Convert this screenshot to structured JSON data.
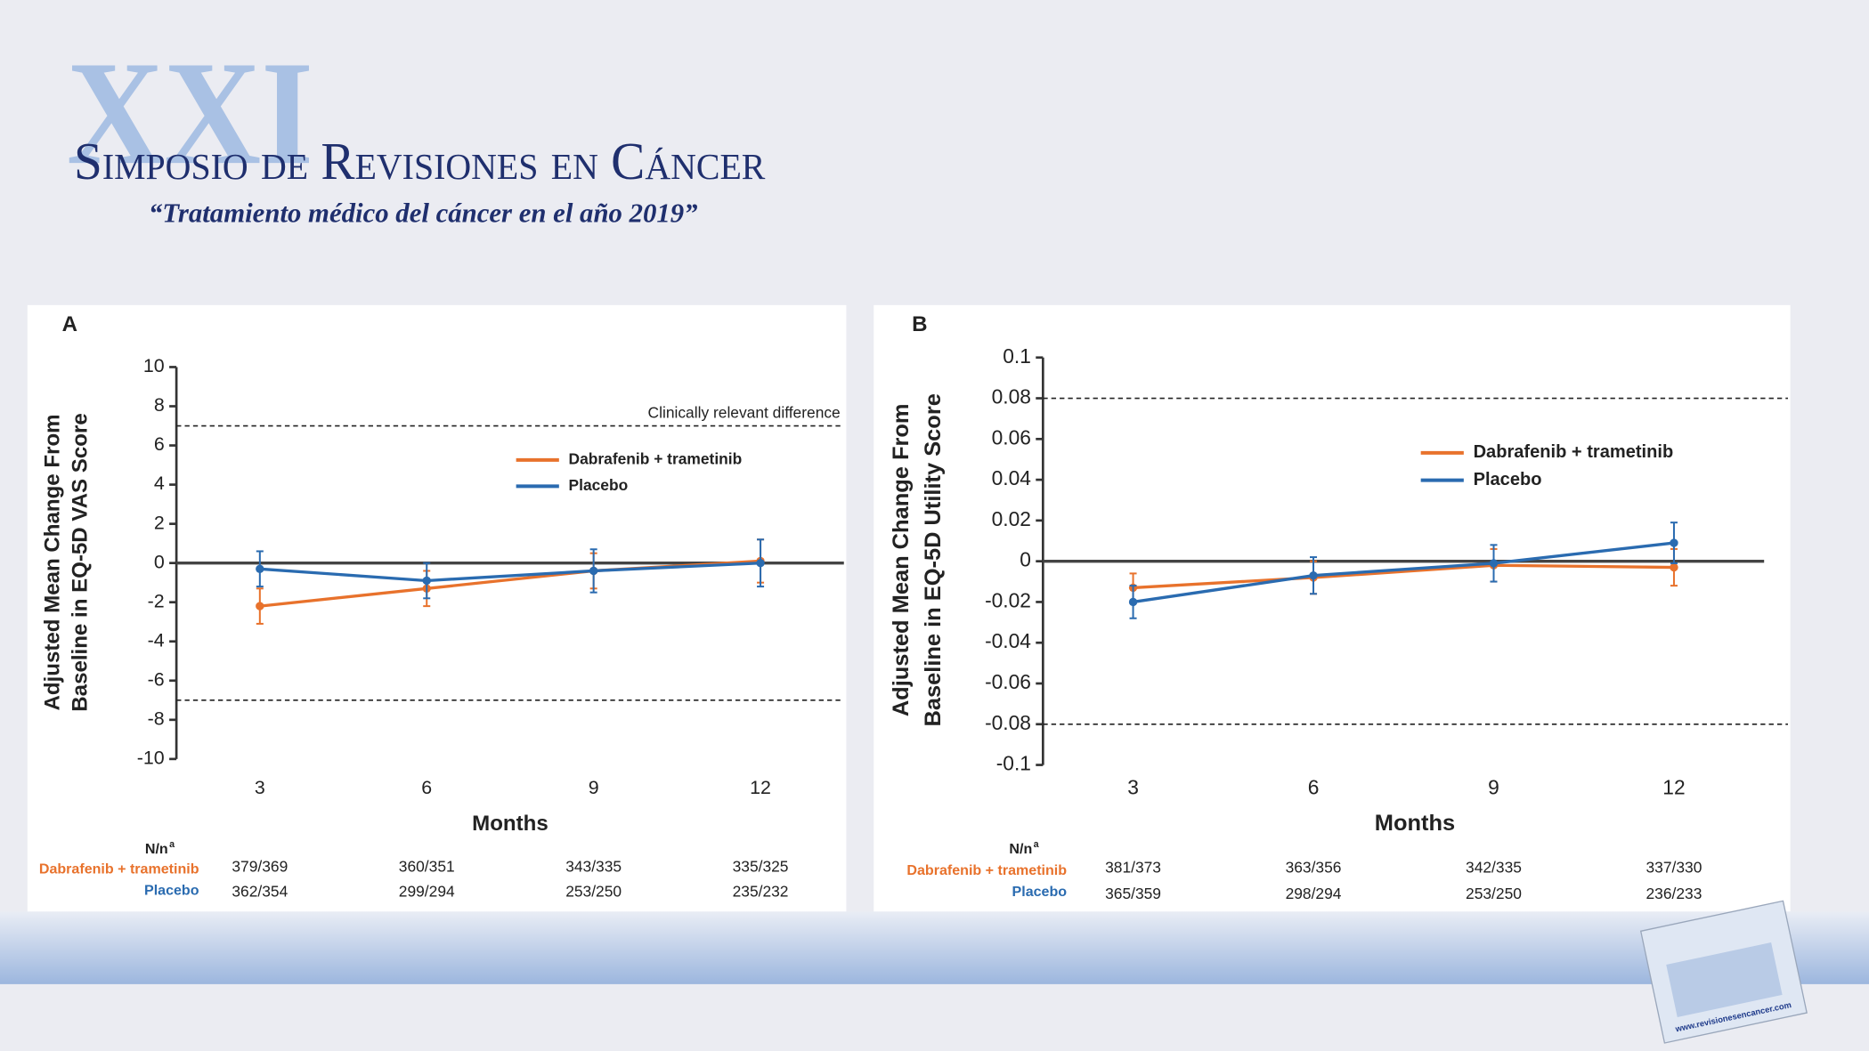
{
  "header": {
    "numeral": "XXI",
    "title": "Simposio de Revisiones en Cáncer",
    "subtitle": "“Tratamiento médico del cáncer en el año 2019”"
  },
  "footer_url": "www.revisionesencancer.com",
  "chart_data": [
    {
      "type": "line",
      "panel": "A",
      "y_label": [
        "Adjusted Mean Change From",
        "Baseline in EQ-5D VAS Score"
      ],
      "x_label": "Months",
      "x": [
        3,
        6,
        9,
        12
      ],
      "xlim": [
        1.5,
        13.5
      ],
      "xticks": [
        3,
        6,
        9,
        12
      ],
      "ylim": [
        -10,
        10
      ],
      "yticks": [
        -10,
        -8,
        -6,
        -4,
        -2,
        0,
        2,
        4,
        6,
        8,
        10
      ],
      "legend": "upper right",
      "ref_lines": [
        7,
        -7
      ],
      "annotation": "Clinically relevant difference",
      "series": [
        {
          "name": "Dabrafenib + trametinib",
          "color": "#e8722c",
          "values": [
            -2.2,
            -1.3,
            -0.4,
            0.1
          ],
          "errors": [
            0.9,
            0.9,
            0.9,
            1.1
          ]
        },
        {
          "name": "Placebo",
          "color": "#2a6bb0",
          "values": [
            -0.3,
            -0.9,
            -0.4,
            0.0
          ],
          "errors": [
            0.9,
            0.9,
            1.1,
            1.2
          ]
        }
      ],
      "n_table": {
        "header": "N/n",
        "header_note": "a",
        "rows": [
          {
            "name": "Dabrafenib + trametinib",
            "values": [
              "379/369",
              "360/351",
              "343/335",
              "335/325"
            ]
          },
          {
            "name": "Placebo",
            "values": [
              "362/354",
              "299/294",
              "253/250",
              "235/232"
            ]
          }
        ]
      }
    },
    {
      "type": "line",
      "panel": "B",
      "y_label": [
        "Adjusted Mean Change From",
        "Baseline in EQ-5D Utility Score"
      ],
      "x_label": "Months",
      "x": [
        3,
        6,
        9,
        12
      ],
      "xlim": [
        1.5,
        13.5
      ],
      "xticks": [
        3,
        6,
        9,
        12
      ],
      "ylim": [
        -0.1,
        0.1
      ],
      "yticks": [
        -0.1,
        -0.08,
        -0.06,
        -0.04,
        -0.02,
        0,
        0.02,
        0.04,
        0.06,
        0.08,
        0.1
      ],
      "legend": "upper right",
      "ref_lines": [
        0.08,
        -0.08
      ],
      "series": [
        {
          "name": "Dabrafenib + trametinib",
          "color": "#e8722c",
          "values": [
            -0.013,
            -0.008,
            -0.002,
            -0.003
          ],
          "errors": [
            0.007,
            0.008,
            0.008,
            0.009
          ]
        },
        {
          "name": "Placebo",
          "color": "#2a6bb0",
          "values": [
            -0.02,
            -0.007,
            -0.001,
            0.009
          ],
          "errors": [
            0.008,
            0.009,
            0.009,
            0.01
          ]
        }
      ],
      "n_table": {
        "header": "N/n",
        "header_note": "a",
        "rows": [
          {
            "name": "Dabrafenib + trametinib",
            "values": [
              "381/373",
              "363/356",
              "342/335",
              "337/330"
            ]
          },
          {
            "name": "Placebo",
            "values": [
              "365/359",
              "298/294",
              "253/250",
              "236/233"
            ]
          }
        ]
      }
    }
  ]
}
